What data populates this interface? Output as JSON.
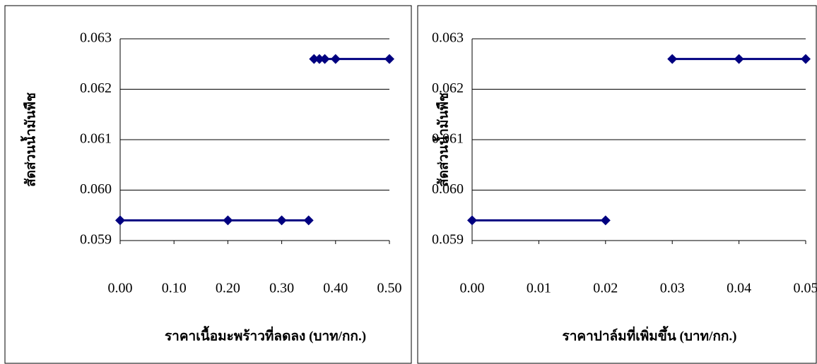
{
  "chart_data": [
    {
      "type": "line",
      "y_label": "สัดส่วนน้ำมันพืช",
      "x_label": "ราคาเนื้อมะพร้าวที่ลดลง (บาท/กก.)",
      "xlim": [
        0,
        0.5
      ],
      "xticks": [
        {
          "value": 0,
          "label": "0.00"
        },
        {
          "value": 0.1,
          "label": "0.10"
        },
        {
          "value": 0.2,
          "label": "0.20"
        },
        {
          "value": 0.3,
          "label": "0.30"
        },
        {
          "value": 0.4,
          "label": "0.40"
        },
        {
          "value": 0.5,
          "label": "0.50"
        }
      ],
      "ylim": [
        0.059,
        0.063
      ],
      "yticks": [
        0.059,
        {
          "value": 0.06,
          "label": "0.060"
        },
        0.061,
        0.062,
        0.063
      ],
      "grid": true,
      "series": [
        {
          "color": "#000080",
          "x": [
            0,
            0.2,
            0.3,
            0.35
          ],
          "values": [
            0.0594,
            0.0594,
            0.0594,
            0.0594
          ]
        },
        {
          "color": "#000080",
          "x": [
            0.36,
            0.37,
            0.38,
            0.4,
            0.5
          ],
          "values": [
            0.0626,
            0.0626,
            0.0626,
            0.0626,
            0.0626
          ]
        }
      ]
    },
    {
      "type": "line",
      "y_label": "สัดส่วนน้ำมันพืช",
      "x_label": "ราคาปาล์มที่เพิ่มขึ้น (บาท/กก.)",
      "xlim": [
        0,
        0.05
      ],
      "xticks": [
        {
          "value": 0,
          "label": "0.00"
        },
        0.01,
        0.02,
        0.03,
        0.04,
        0.05
      ],
      "ylim": [
        0.059,
        0.063
      ],
      "yticks": [
        0.059,
        {
          "value": 0.06,
          "label": "0.060"
        },
        0.061,
        0.062,
        0.063
      ],
      "grid": true,
      "series": [
        {
          "color": "#000080",
          "x": [
            0,
            0.02
          ],
          "values": [
            0.0594,
            0.0594
          ]
        },
        {
          "color": "#000080",
          "x": [
            0.03,
            0.04,
            0.05
          ],
          "values": [
            0.0626,
            0.0626,
            0.0626
          ]
        }
      ]
    }
  ]
}
